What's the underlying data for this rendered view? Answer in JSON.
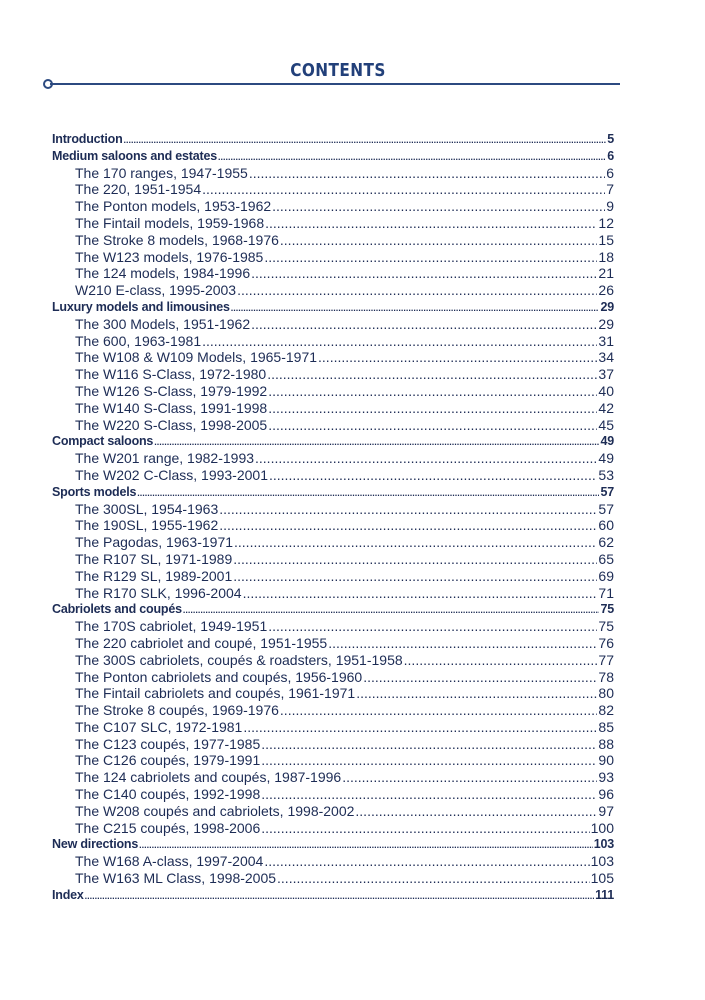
{
  "title": "CONTENTS",
  "colors": {
    "title": "#22407a",
    "text": "#1d2c55",
    "rule": "#2c4a80"
  },
  "entries": [
    {
      "level": 0,
      "label": "Introduction",
      "page": "5"
    },
    {
      "level": 0,
      "label": "Medium saloons and estates",
      "page": "6"
    },
    {
      "level": 1,
      "label": "The 170 ranges, 1947-1955",
      "page": "6"
    },
    {
      "level": 1,
      "label": "The 220, 1951-1954",
      "page": "7"
    },
    {
      "level": 1,
      "label": "The Ponton models, 1953-1962",
      "page": "9"
    },
    {
      "level": 1,
      "label": "The Fintail models, 1959-1968",
      "page": "12"
    },
    {
      "level": 1,
      "label": "The Stroke 8 models, 1968-1976",
      "page": "15"
    },
    {
      "level": 1,
      "label": "The W123 models, 1976-1985",
      "page": "18"
    },
    {
      "level": 1,
      "label": "The 124 models, 1984-1996",
      "page": "21"
    },
    {
      "level": 1,
      "label": "W210 E-class, 1995-2003",
      "page": "26"
    },
    {
      "level": 0,
      "label": "Luxury models and limousines",
      "page": "29"
    },
    {
      "level": 1,
      "label": "The 300 Models, 1951-1962",
      "page": "29"
    },
    {
      "level": 1,
      "label": "The 600, 1963-1981",
      "page": "31"
    },
    {
      "level": 1,
      "label": "The W108 & W109 Models, 1965-1971",
      "page": "34"
    },
    {
      "level": 1,
      "label": "The W116 S-Class, 1972-1980",
      "page": "37"
    },
    {
      "level": 1,
      "label": "The W126 S-Class, 1979-1992",
      "page": "40"
    },
    {
      "level": 1,
      "label": "The W140 S-Class, 1991-1998",
      "page": "42"
    },
    {
      "level": 1,
      "label": "The W220 S-Class, 1998-2005",
      "page": "45"
    },
    {
      "level": 0,
      "label": "Compact saloons",
      "page": "49"
    },
    {
      "level": 1,
      "label": "The W201 range, 1982-1993",
      "page": "49"
    },
    {
      "level": 1,
      "label": "The W202 C-Class, 1993-2001",
      "page": "53"
    },
    {
      "level": 0,
      "label": "Sports models",
      "page": "57"
    },
    {
      "level": 1,
      "label": "The 300SL, 1954-1963",
      "page": "57"
    },
    {
      "level": 1,
      "label": "The 190SL, 1955-1962",
      "page": "60"
    },
    {
      "level": 1,
      "label": "The Pagodas, 1963-1971",
      "page": "62"
    },
    {
      "level": 1,
      "label": "The R107 SL, 1971-1989",
      "page": "65"
    },
    {
      "level": 1,
      "label": "The R129 SL, 1989-2001",
      "page": "69"
    },
    {
      "level": 1,
      "label": "The R170 SLK, 1996-2004",
      "page": "71"
    },
    {
      "level": 0,
      "label": "Cabriolets and coupés",
      "page": "75"
    },
    {
      "level": 1,
      "label": "The 170S cabriolet, 1949-1951",
      "page": "75"
    },
    {
      "level": 1,
      "label": "The 220 cabriolet and coupé, 1951-1955",
      "page": "76"
    },
    {
      "level": 1,
      "label": "The 300S cabriolets, coupés & roadsters, 1951-1958",
      "page": "77"
    },
    {
      "level": 1,
      "label": "The Ponton cabriolets and coupés, 1956-1960",
      "page": "78"
    },
    {
      "level": 1,
      "label": "The Fintail cabriolets and coupés, 1961-1971",
      "page": "80"
    },
    {
      "level": 1,
      "label": "The Stroke 8 coupés, 1969-1976",
      "page": "82"
    },
    {
      "level": 1,
      "label": "The C107 SLC, 1972-1981",
      "page": "85"
    },
    {
      "level": 1,
      "label": "The C123 coupés, 1977-1985",
      "page": "88"
    },
    {
      "level": 1,
      "label": "The C126 coupés, 1979-1991",
      "page": "90"
    },
    {
      "level": 1,
      "label": "The 124 cabriolets and coupés, 1987-1996",
      "page": "93"
    },
    {
      "level": 1,
      "label": "The C140 coupés, 1992-1998",
      "page": "96"
    },
    {
      "level": 1,
      "label": "The W208 coupés and cabriolets, 1998-2002",
      "page": "97"
    },
    {
      "level": 1,
      "label": "The C215 coupés, 1998-2006",
      "page": "100"
    },
    {
      "level": 0,
      "label": "New directions",
      "page": "103"
    },
    {
      "level": 1,
      "label": "The W168 A-class, 1997-2004",
      "page": "103"
    },
    {
      "level": 1,
      "label": "The W163 ML Class, 1998-2005",
      "page": "105"
    },
    {
      "level": 0,
      "label": "Index",
      "page": "111"
    }
  ]
}
